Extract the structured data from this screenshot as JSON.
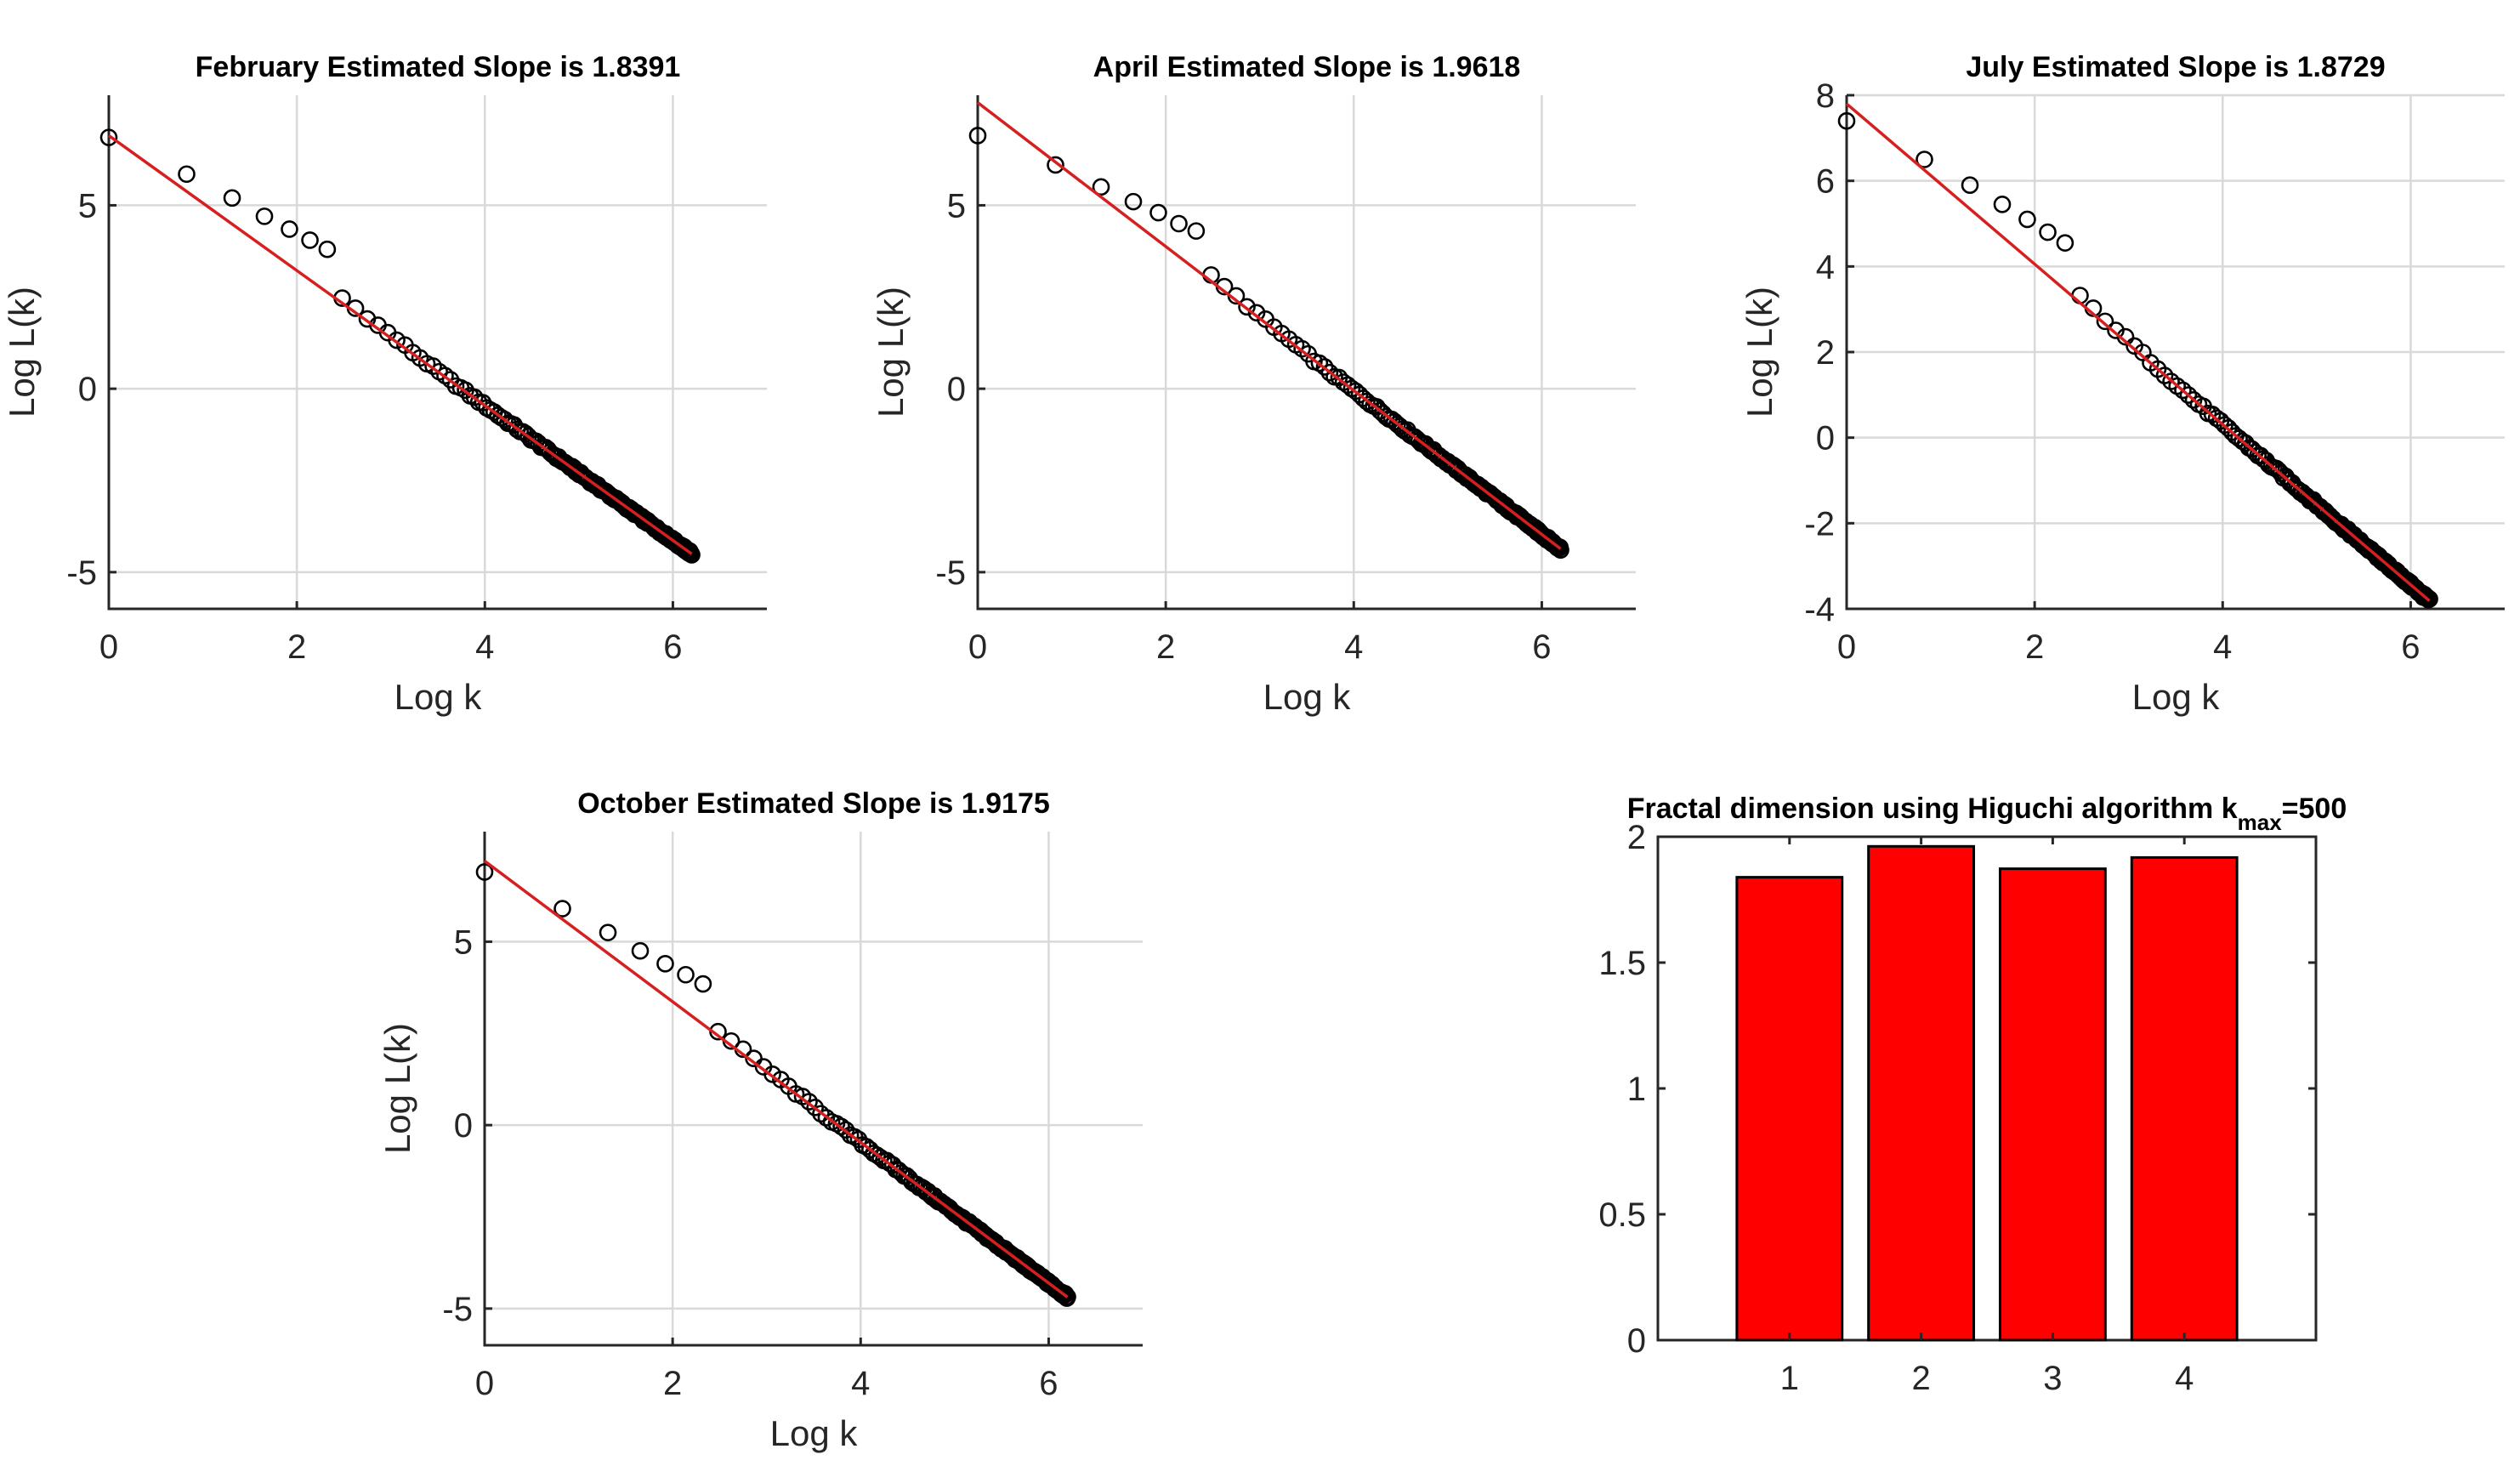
{
  "chart_data": [
    {
      "type": "scatter",
      "title": "February Estimated Slope is 1.8391",
      "xlabel": "Log k",
      "ylabel": "Log L(k)",
      "xlim": [
        0,
        7
      ],
      "ylim": [
        -6,
        8
      ],
      "xticks": [
        0,
        2,
        4,
        6
      ],
      "yticks": [
        -5,
        0,
        5
      ],
      "ytick_labels": [
        "-5",
        "0",
        "5"
      ],
      "grid": true,
      "fit_line": {
        "intercept": 6.9,
        "slope": -1.8391,
        "x_range": [
          0,
          6.2
        ],
        "color": "#d62020"
      },
      "first_points_y": [
        6.85,
        5.85,
        5.2,
        4.7,
        4.35,
        4.05,
        3.8
      ],
      "end_point": [
        6.2,
        -4.45
      ]
    },
    {
      "type": "scatter",
      "title": "April Estimated Slope is 1.9618",
      "xlabel": "Log k",
      "ylabel": "Log L(k)",
      "xlim": [
        0,
        7
      ],
      "ylim": [
        -6,
        8
      ],
      "xticks": [
        0,
        2,
        4,
        6
      ],
      "yticks": [
        -5,
        0,
        5
      ],
      "ytick_labels": [
        "-5",
        "0",
        "5"
      ],
      "grid": true,
      "fit_line": {
        "intercept": 7.8,
        "slope": -1.9618,
        "x_range": [
          0,
          6.2
        ],
        "color": "#d62020"
      },
      "first_points_y": [
        6.9,
        6.1,
        5.5,
        5.1,
        4.8,
        4.5,
        4.3
      ],
      "end_point": [
        6.2,
        -4.4
      ]
    },
    {
      "type": "scatter",
      "title": "July Estimated Slope is 1.8729",
      "xlabel": "Log k",
      "ylabel": "Log L(k)",
      "xlim": [
        0,
        7
      ],
      "ylim": [
        -4,
        8
      ],
      "xticks": [
        0,
        2,
        4,
        6
      ],
      "yticks": [
        -4,
        -2,
        0,
        2,
        4,
        6,
        8
      ],
      "ytick_labels": [
        "-4",
        "-2",
        "0",
        "2",
        "4",
        "6",
        "8"
      ],
      "grid": true,
      "fit_line": {
        "intercept": 7.8,
        "slope": -1.8729,
        "x_range": [
          0,
          6.2
        ],
        "color": "#d62020"
      },
      "first_points_y": [
        7.4,
        6.5,
        5.9,
        5.45,
        5.1,
        4.8,
        4.55
      ],
      "end_point": [
        6.2,
        -3.75
      ]
    },
    {
      "type": "scatter",
      "title": "October Estimated Slope is 1.9175",
      "xlabel": "Log k",
      "ylabel": "Log L(k)",
      "xlim": [
        0,
        7
      ],
      "ylim": [
        -6,
        8
      ],
      "xticks": [
        0,
        2,
        4,
        6
      ],
      "yticks": [
        -5,
        0,
        5
      ],
      "ytick_labels": [
        "-5",
        "0",
        "5"
      ],
      "grid": true,
      "fit_line": {
        "intercept": 7.2,
        "slope": -1.9175,
        "x_range": [
          0,
          6.2
        ],
        "color": "#d62020"
      },
      "first_points_y": [
        6.9,
        5.9,
        5.25,
        4.75,
        4.4,
        4.1,
        3.85
      ],
      "end_point": [
        6.2,
        -4.7
      ]
    },
    {
      "type": "bar",
      "title_main": "Fractal dimension using Higuchi algorithm k",
      "title_sub": "max",
      "title_tail": "=500",
      "categories": [
        "1",
        "2",
        "3",
        "4"
      ],
      "values": [
        1.8391,
        1.9618,
        1.8729,
        1.9175
      ],
      "xlim": [
        0,
        5
      ],
      "ylim": [
        0,
        2
      ],
      "yticks": [
        0,
        0.5,
        1,
        1.5,
        2
      ],
      "ytick_labels": [
        "0",
        "0.5",
        "1",
        "1.5",
        "2"
      ],
      "grid": false,
      "color": "#ff0000"
    }
  ]
}
